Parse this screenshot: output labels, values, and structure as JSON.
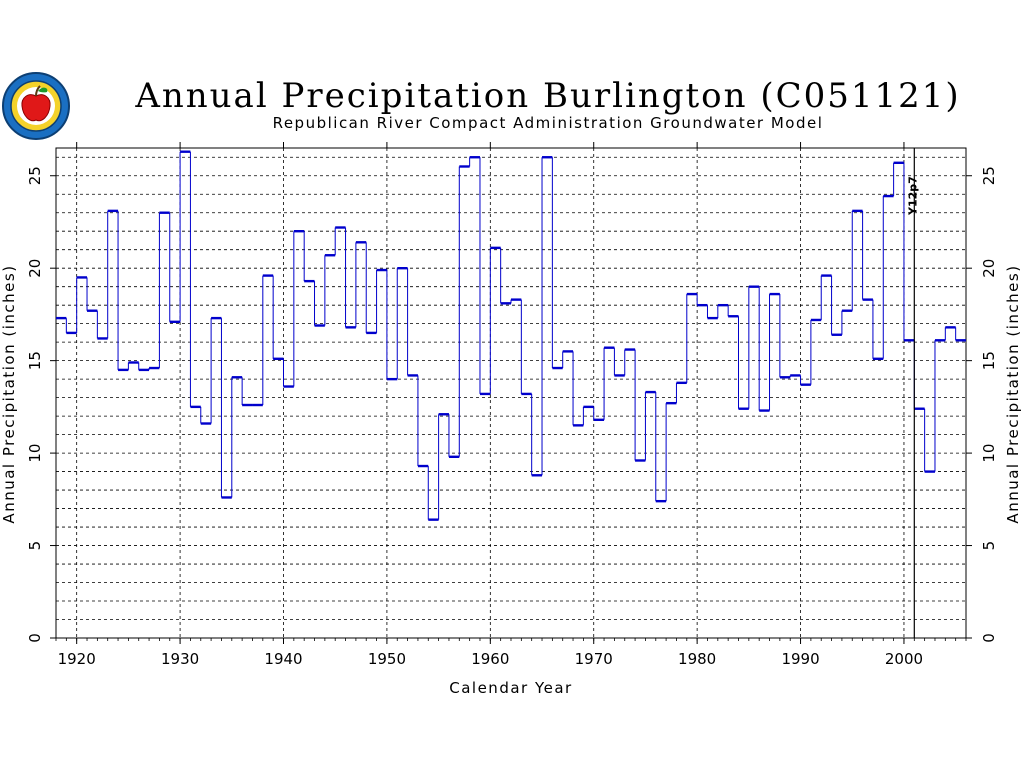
{
  "chart_data": {
    "type": "line",
    "step": true,
    "title": "Annual Precipitation Burlington (C051121)",
    "subtitle": "Republican River Compact Administration Groundwater Model",
    "xlabel": "Calendar Year",
    "ylabel_left": "Annual Precipitation (inches)",
    "ylabel_right": "Annual Precipitation (inches)",
    "xlim": [
      1918,
      2006
    ],
    "ylim": [
      0,
      26.5
    ],
    "xticks": [
      "1920",
      "1930",
      "1940",
      "1950",
      "1960",
      "1970",
      "1980",
      "1990",
      "2000"
    ],
    "yticks": [
      "0",
      "5",
      "10",
      "15",
      "20",
      "25"
    ],
    "grid": true,
    "marker_line": {
      "x": 2001,
      "label": "Y12p7"
    },
    "series": [
      {
        "line_color": "#0000cc",
        "x": [
          1918,
          1919,
          1920,
          1921,
          1922,
          1923,
          1924,
          1925,
          1926,
          1927,
          1928,
          1929,
          1930,
          1931,
          1932,
          1933,
          1934,
          1935,
          1936,
          1937,
          1938,
          1939,
          1940,
          1941,
          1942,
          1943,
          1944,
          1945,
          1946,
          1947,
          1948,
          1949,
          1950,
          1951,
          1952,
          1953,
          1954,
          1955,
          1956,
          1957,
          1958,
          1959,
          1960,
          1961,
          1962,
          1963,
          1964,
          1965,
          1966,
          1967,
          1968,
          1969,
          1970,
          1971,
          1972,
          1973,
          1974,
          1975,
          1976,
          1977,
          1978,
          1979,
          1980,
          1981,
          1982,
          1983,
          1984,
          1985,
          1986,
          1987,
          1988,
          1989,
          1990,
          1991,
          1992,
          1993,
          1994,
          1995,
          1996,
          1997,
          1998,
          1999,
          2000,
          2001,
          2002,
          2003,
          2004,
          2005
        ],
        "y": [
          17.3,
          16.5,
          19.5,
          17.7,
          16.2,
          23.1,
          14.5,
          14.9,
          14.5,
          14.6,
          23.0,
          17.1,
          26.3,
          12.5,
          11.6,
          17.3,
          7.6,
          14.1,
          12.6,
          12.6,
          19.6,
          15.1,
          13.6,
          22.0,
          19.3,
          16.9,
          20.7,
          22.2,
          16.8,
          21.4,
          16.5,
          19.9,
          14.0,
          20.0,
          14.2,
          9.3,
          6.4,
          12.1,
          9.8,
          25.5,
          26.0,
          13.2,
          21.1,
          18.1,
          18.3,
          13.2,
          8.8,
          26.0,
          14.6,
          15.5,
          11.5,
          12.5,
          11.8,
          15.7,
          14.2,
          15.6,
          9.6,
          13.3,
          7.4,
          12.7,
          13.8,
          18.6,
          18.0,
          17.3,
          18.0,
          17.4,
          12.4,
          19.0,
          12.3,
          18.6,
          14.1,
          14.2,
          13.7,
          17.2,
          19.6,
          16.4,
          17.7,
          23.1,
          18.3,
          15.1,
          23.9,
          25.7,
          16.1,
          12.4,
          9.0,
          16.1,
          16.8,
          16.1
        ]
      }
    ]
  }
}
